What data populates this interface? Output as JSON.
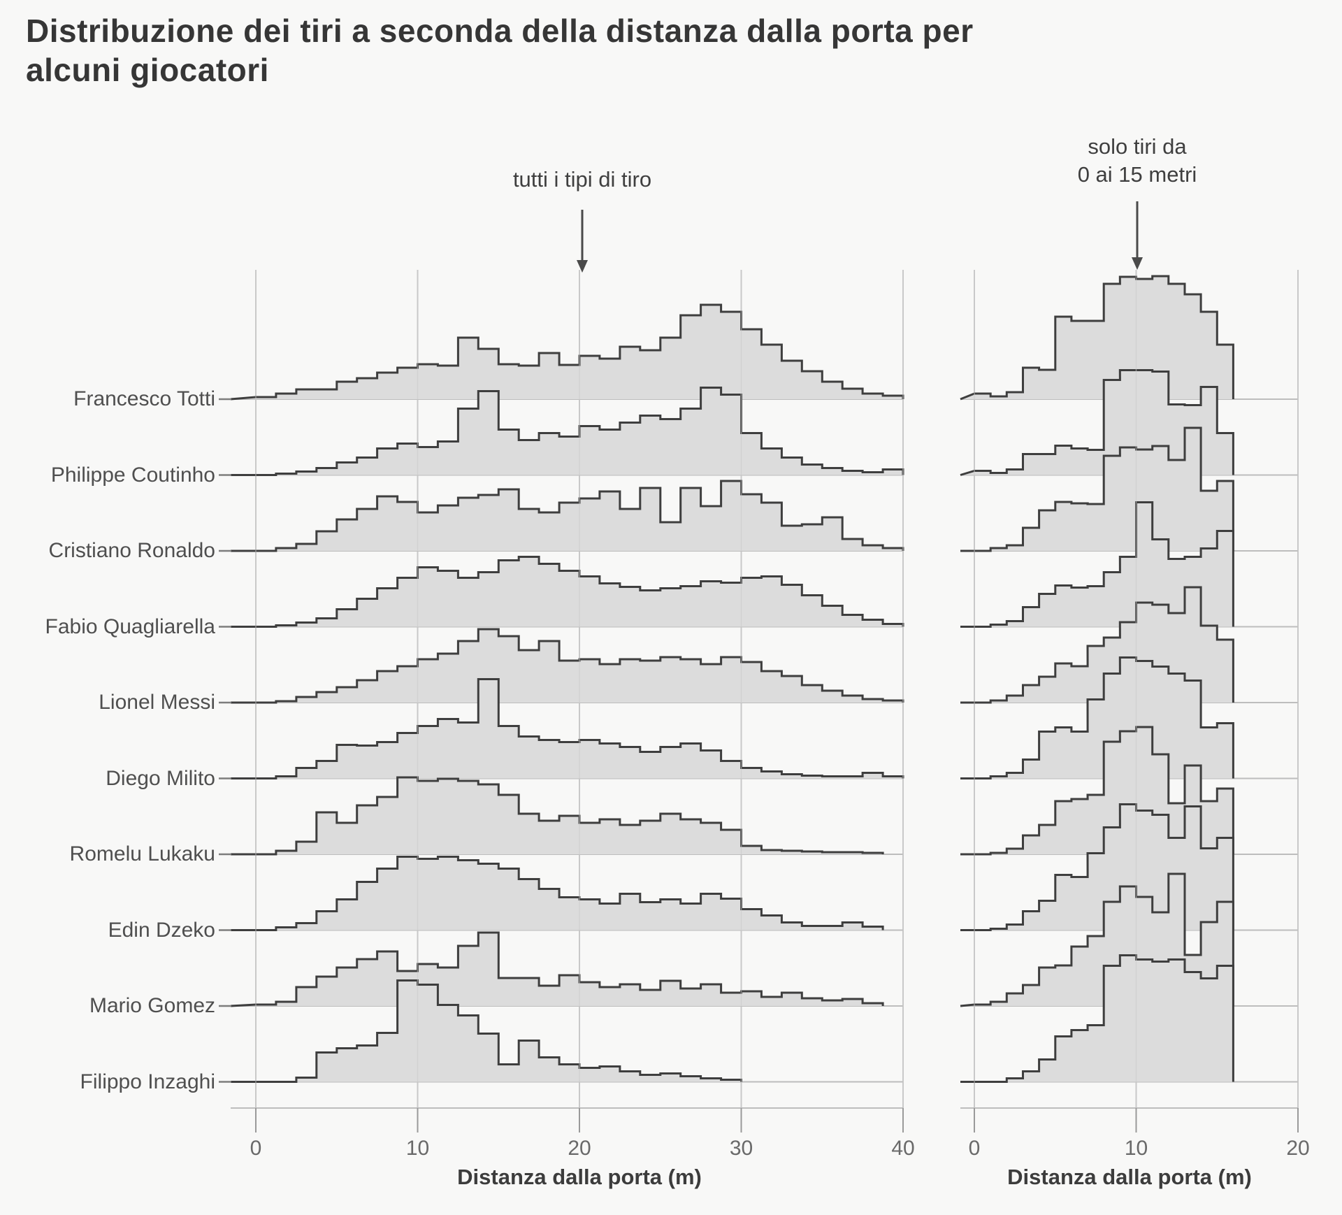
{
  "title": "Distribuzione dei tiri a seconda della distanza dalla porta per alcuni giocatori",
  "annotations": {
    "left": {
      "text": "tutti i tipi di tiro"
    },
    "right": {
      "line1": "solo tiri da",
      "line2": "0 ai 15 metri"
    }
  },
  "players": [
    "Francesco Totti",
    "Philippe Coutinho",
    "Cristiano Ronaldo",
    "Fabio Quagliarella",
    "Lionel Messi",
    "Diego Milito",
    "Romelu Lukaku",
    "Edin Dzeko",
    "Mario Gomez",
    "Filippo Inzaghi"
  ],
  "axis": {
    "label_left": "Distanza dalla porta (m)",
    "label_right": "Distanza dalla porta (m)",
    "left_ticks": [
      0,
      10,
      20,
      30,
      40
    ],
    "right_ticks": [
      0,
      10,
      20
    ]
  },
  "colors": {
    "background": "#f8f8f7",
    "histogram_fill": "#dcdcdc",
    "histogram_outline": "#3e3e3e",
    "gridline": "#c9c9c9",
    "baseline": "#bdbdbd",
    "tick": "#9a9a9a",
    "label_dash": "#7d7d7d",
    "arrow": "#4a4a4a",
    "title_text": "#363636",
    "label_text": "#4f4f4f",
    "tick_text": "#696969"
  },
  "chart_data": {
    "type": "area",
    "subtype": "ridgeline-histograms",
    "title": "Distribuzione dei tiri a seconda della distanza dalla porta per alcuni giocatori",
    "xlabel": "Distanza dalla porta (m)",
    "ylabel": "",
    "grid": true,
    "value_units": "relative shot frequency (unlabeled density axis, values = peak height in px)",
    "row_order_top_to_bottom": [
      "Francesco Totti",
      "Philippe Coutinho",
      "Cristiano Ronaldo",
      "Fabio Quagliarella",
      "Lionel Messi",
      "Diego Milito",
      "Romelu Lukaku",
      "Edin Dzeko",
      "Mario Gomez",
      "Filippo Inzaghi"
    ],
    "panels": [
      {
        "id": "left",
        "annotation": "tutti i tipi di tiro",
        "xlim": [
          0,
          40
        ],
        "xticks": [
          0,
          10,
          20,
          30,
          40
        ],
        "bin_start_m": 0,
        "bin_width_m": 1.25,
        "series": [
          {
            "name": "Francesco Totti",
            "values": [
              3,
              8,
              14,
              14,
              25,
              30,
              38,
              45,
              50,
              48,
              88,
              72,
              50,
              48,
              66,
              49,
              62,
              58,
              75,
              70,
              88,
              120,
              135,
              125,
              100,
              78,
              55,
              40,
              25,
              15,
              8,
              5
            ]
          },
          {
            "name": "Philippe Coutinho",
            "values": [
              0,
              2,
              5,
              10,
              18,
              25,
              38,
              45,
              40,
              48,
              95,
              120,
              65,
              50,
              60,
              55,
              70,
              65,
              75,
              85,
              80,
              95,
              125,
              115,
              60,
              38,
              25,
              15,
              10,
              6,
              4,
              8
            ]
          },
          {
            "name": "Cristiano Ronaldo",
            "values": [
              0,
              4,
              10,
              28,
              45,
              60,
              78,
              70,
              55,
              65,
              76,
              80,
              88,
              60,
              55,
              69,
              75,
              85,
              60,
              90,
              41,
              90,
              64,
              100,
              81,
              69,
              36,
              38,
              48,
              17,
              8,
              4
            ]
          },
          {
            "name": "Fabio Quagliarella",
            "values": [
              0,
              2,
              6,
              12,
              25,
              40,
              55,
              70,
              85,
              80,
              70,
              78,
              95,
              100,
              90,
              80,
              72,
              62,
              57,
              52,
              55,
              58,
              65,
              63,
              70,
              72,
              60,
              45,
              30,
              17,
              10,
              4
            ]
          },
          {
            "name": "Lionel Messi",
            "values": [
              0,
              2,
              8,
              15,
              22,
              32,
              45,
              52,
              62,
              70,
              88,
              105,
              95,
              75,
              88,
              60,
              62,
              55,
              62,
              60,
              65,
              62,
              55,
              65,
              58,
              45,
              38,
              25,
              17,
              10,
              5,
              3
            ]
          },
          {
            "name": "Diego Milito",
            "values": [
              0,
              3,
              15,
              25,
              48,
              47,
              52,
              65,
              75,
              85,
              80,
              142,
              75,
              60,
              55,
              52,
              55,
              50,
              45,
              38,
              45,
              50,
              40,
              25,
              15,
              10,
              6,
              4,
              3,
              3,
              8,
              3
            ]
          },
          {
            "name": "Romelu Lukaku",
            "values": [
              0,
              5,
              18,
              60,
              45,
              70,
              82,
              110,
              105,
              108,
              105,
              100,
              85,
              58,
              48,
              55,
              45,
              50,
              42,
              48,
              58,
              50,
              45,
              35,
              12,
              6,
              5,
              4,
              3,
              3,
              2,
              0
            ]
          },
          {
            "name": "Edin Dzeko",
            "values": [
              0,
              4,
              10,
              27,
              44,
              69,
              88,
              105,
              102,
              105,
              100,
              95,
              88,
              73,
              59,
              47,
              44,
              38,
              52,
              40,
              44,
              38,
              52,
              45,
              30,
              21,
              11,
              6,
              6,
              11,
              5,
              0
            ]
          },
          {
            "name": "Mario Gomez",
            "values": [
              2,
              6,
              27,
              42,
              55,
              67,
              78,
              50,
              60,
              55,
              86,
              105,
              40,
              40,
              29,
              44,
              34,
              27,
              31,
              23,
              36,
              25,
              31,
              19,
              21,
              13,
              19,
              11,
              8,
              10,
              4,
              0
            ]
          },
          {
            "name": "Filippo Inzaghi",
            "values": [
              0,
              0,
              6,
              42,
              48,
              52,
              70,
              145,
              139,
              110,
              95,
              69,
              25,
              59,
              35,
              25,
              20,
              22,
              15,
              10,
              12,
              8,
              5,
              3,
              0,
              0,
              0,
              0,
              0,
              0,
              0,
              0
            ]
          }
        ]
      },
      {
        "id": "right",
        "annotation": "solo tiri da 0 ai 15 metri",
        "xlim": [
          0,
          20
        ],
        "xticks": [
          0,
          10,
          20
        ],
        "bin_start_m": 0,
        "bin_width_m": 1,
        "series": [
          {
            "name": "Francesco Totti",
            "values": [
              8,
              4,
              10,
              45,
              42,
              118,
              112,
              112,
              165,
              175,
              172,
              176,
              165,
              150,
              125,
              78
            ]
          },
          {
            "name": "Philippe Coutinho",
            "values": [
              6,
              3,
              8,
              30,
              30,
              42,
              38,
              36,
              136,
              150,
              150,
              148,
              101,
              100,
              126,
              60
            ]
          },
          {
            "name": "Cristiano Ronaldo",
            "values": [
              0,
              4,
              8,
              33,
              58,
              70,
              68,
              67,
              136,
              148,
              145,
              150,
              130,
              176,
              86,
              100
            ]
          },
          {
            "name": "Fabio Quagliarella",
            "values": [
              0,
              3,
              8,
              28,
              47,
              59,
              56,
              58,
              78,
              100,
              178,
              125,
              97,
              100,
              112,
              137
            ]
          },
          {
            "name": "Lionel Messi",
            "values": [
              0,
              3,
              10,
              25,
              37,
              56,
              52,
              81,
              93,
              115,
              143,
              140,
              128,
              165,
              110,
              90
            ]
          },
          {
            "name": "Diego Milito",
            "values": [
              0,
              3,
              8,
              27,
              67,
              73,
              67,
              113,
              150,
              173,
              168,
              160,
              150,
              140,
              73,
              79
            ]
          },
          {
            "name": "Romelu Lukaku",
            "values": [
              0,
              2,
              8,
              27,
              42,
              76,
              79,
              85,
              161,
              176,
              182,
              143,
              73,
              127,
              76,
              94
            ]
          },
          {
            "name": "Edin Dzeko",
            "values": [
              0,
              2,
              8,
              27,
              42,
              79,
              76,
              110,
              147,
              180,
              171,
              165,
              132,
              177,
              117,
              132
            ]
          },
          {
            "name": "Mario Gomez",
            "values": [
              2,
              6,
              18,
              30,
              55,
              58,
              85,
              100,
              149,
              171,
              156,
              134,
              189,
              73,
              120,
              149
            ]
          },
          {
            "name": "Filippo Inzaghi",
            "values": [
              0,
              0,
              5,
              15,
              32,
              65,
              74,
              81,
              166,
              181,
              175,
              172,
              175,
              157,
              148,
              166
            ]
          }
        ]
      }
    ]
  }
}
